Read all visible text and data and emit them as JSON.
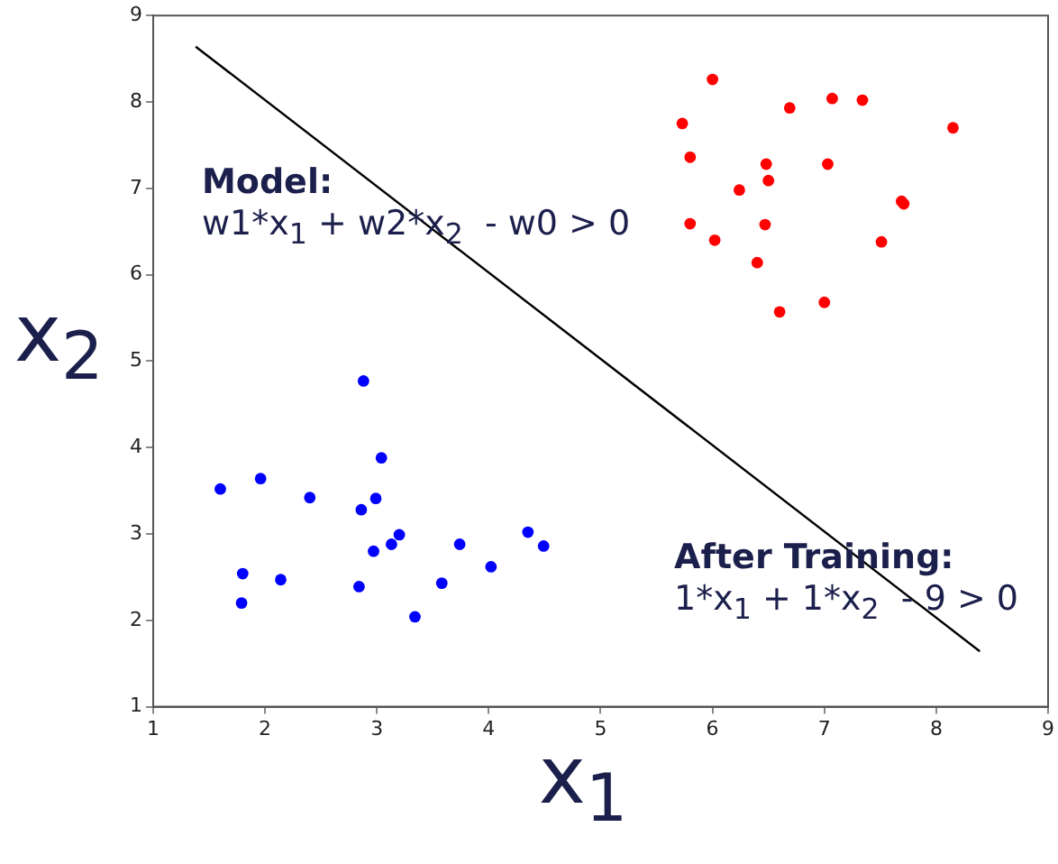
{
  "chart_data": {
    "type": "scatter",
    "xlabel": "x$_{1}$",
    "ylabel": "x$_{2}$",
    "xlim": [
      1,
      9
    ],
    "ylim": [
      1,
      9
    ],
    "xticks": [
      1,
      2,
      3,
      4,
      5,
      6,
      7,
      8,
      9
    ],
    "yticks": [
      1,
      2,
      3,
      4,
      5,
      6,
      7,
      8,
      9
    ],
    "grid": false,
    "legend": false,
    "marker": "circle",
    "annotations": [
      "Model:",
      "w1*x$_{1}$ + w2*x$_{2}$  - w0 > 0",
      "After Training:",
      "1*x$_{1}$ + 1*x$_{2}$  - 9 > 0"
    ],
    "series": [
      {
        "color": "#0000ff",
        "x": [
          1.6,
          1.96,
          2.4,
          2.88,
          3.04,
          2.99,
          2.86,
          3.2,
          3.13,
          2.97,
          3.74,
          4.35,
          4.49,
          4.02,
          3.58,
          3.34,
          2.84,
          2.14,
          1.8,
          1.79
        ],
        "values": [
          3.52,
          3.64,
          3.42,
          4.77,
          3.88,
          3.41,
          3.28,
          2.99,
          2.88,
          2.8,
          2.88,
          3.02,
          2.86,
          2.62,
          2.43,
          2.04,
          2.39,
          2.47,
          2.54,
          2.2
        ]
      },
      {
        "color": "#ff0000",
        "x": [
          6.0,
          5.73,
          6.69,
          7.07,
          7.34,
          8.15,
          5.8,
          6.48,
          7.03,
          6.5,
          6.24,
          7.69,
          7.71,
          5.8,
          6.47,
          6.02,
          7.51,
          6.4,
          7.0,
          6.6
        ],
        "values": [
          8.26,
          7.75,
          7.93,
          8.04,
          8.02,
          7.7,
          7.36,
          7.28,
          7.28,
          7.09,
          6.98,
          6.85,
          6.82,
          6.59,
          6.58,
          6.4,
          6.38,
          6.14,
          5.68,
          5.57
        ]
      },
      {
        "type": "line",
        "color": "#000000",
        "marker": "none",
        "line_style": "solid",
        "x": [
          1.38,
          8.39
        ],
        "values": [
          8.64,
          1.64
        ]
      }
    ]
  }
}
